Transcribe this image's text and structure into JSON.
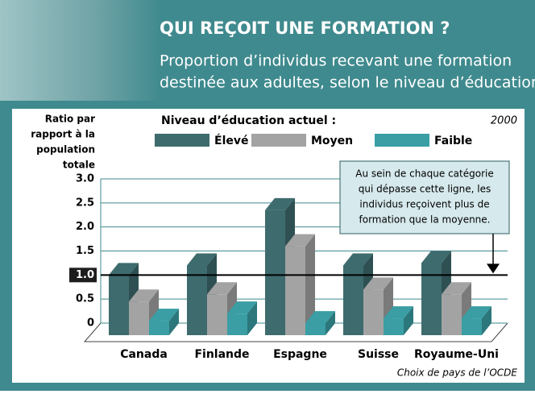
{
  "chart_data": {
    "type": "bar3d",
    "title": "QUI REÇOIT UNE FORMATION ?",
    "subtitle": [
      "Proportion d’individus recevant une formation",
      "destinée aux adultes, selon le niveau d’éducation"
    ],
    "ylabel": [
      "Ratio par",
      "rapport à la",
      "population",
      "totale"
    ],
    "legend_title": "Niveau d’éducation actuel :",
    "year": "2000",
    "footnote": "Choix de pays de l’OCDE",
    "annotation": [
      "Au sein de chaque catégorie",
      "qui dépasse cette ligne, les",
      "individus reçoivent plus de",
      "formation que la moyenne."
    ],
    "categories": [
      "Canada",
      "Finlande",
      "Espagne",
      "Suisse",
      "Royaume-Uni"
    ],
    "series": [
      {
        "name": "Élevé",
        "color": "#3e6b6e",
        "values": [
          1.25,
          1.45,
          2.6,
          1.45,
          1.5
        ]
      },
      {
        "name": "Moyen",
        "color": "#a3a3a3",
        "values": [
          0.7,
          0.85,
          1.85,
          0.95,
          0.85
        ]
      },
      {
        "name": "Faible",
        "color": "#3a9ea4",
        "values": [
          0.3,
          0.45,
          0.25,
          0.35,
          0.35
        ]
      }
    ],
    "ylim": [
      0,
      3
    ],
    "yticks": [
      0,
      {
        "value": 0.5,
        "label": "0.5"
      },
      {
        "value": 1,
        "label": "1.0"
      },
      {
        "value": 1.5,
        "label": "1.5"
      },
      {
        "value": 2,
        "label": "2.0"
      },
      {
        "value": 2.5,
        "label": "2.5"
      },
      {
        "value": 3,
        "label": "3.0"
      }
    ],
    "reference_line": 1,
    "grid": true
  }
}
